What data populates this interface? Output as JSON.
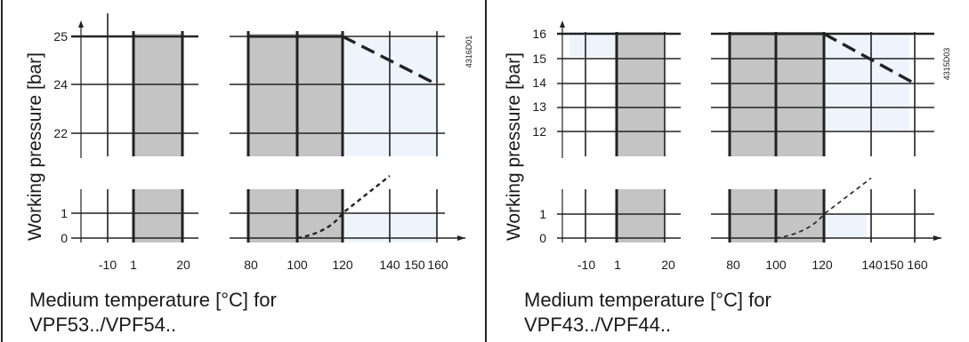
{
  "chart_data": [
    {
      "type": "line",
      "chart_id": "4316D01",
      "ylabel": "Working pressure [bar]",
      "xlabel_line1": "Medium temperature [°C] for",
      "xlabel_line2": "VPF53../VPF54..",
      "x_tick_labels": [
        "-10",
        "1",
        "20",
        "80",
        "100",
        "120",
        "140",
        "150",
        "160"
      ],
      "y_tick_labels_upper": [
        "25",
        "24",
        "22"
      ],
      "y_tick_labels_lower": [
        "1",
        "0"
      ],
      "shaded_ranges_x": [
        [
          1,
          20
        ],
        [
          80,
          120
        ]
      ],
      "series": [
        {
          "style": "solid",
          "x": [
            80,
            120
          ],
          "y": [
            25,
            25
          ]
        },
        {
          "style": "dashed",
          "x": [
            120,
            160
          ],
          "y": [
            25,
            24
          ]
        },
        {
          "style": "dotted",
          "x": [
            100,
            120,
            140
          ],
          "y": [
            0,
            1,
            2.5
          ]
        }
      ],
      "colors": {
        "shade": "#c4c4c4",
        "light": "#eef4fb",
        "line": "#222222"
      }
    },
    {
      "type": "line",
      "chart_id": "4315D03",
      "ylabel": "Working pressure [bar]",
      "xlabel_line1": "Medium temperature [°C] for",
      "xlabel_line2": "VPF43../VPF44..",
      "x_tick_labels": [
        "-10",
        "1",
        "20",
        "80",
        "100",
        "120",
        "140",
        "150",
        "160"
      ],
      "y_tick_labels_upper": [
        "16",
        "15",
        "14",
        "13",
        "12"
      ],
      "y_tick_labels_lower": [
        "1",
        "0"
      ],
      "shaded_ranges_x": [
        [
          1,
          20
        ],
        [
          80,
          120
        ]
      ],
      "series": [
        {
          "style": "solid",
          "x": [
            80,
            120
          ],
          "y": [
            16,
            16
          ]
        },
        {
          "style": "dashed",
          "x": [
            120,
            160
          ],
          "y": [
            16,
            14
          ]
        },
        {
          "style": "dotted",
          "x": [
            100,
            120,
            140
          ],
          "y": [
            0,
            1,
            2.5
          ]
        }
      ],
      "colors": {
        "shade": "#c4c4c4",
        "light": "#eef4fb",
        "line": "#222222"
      }
    }
  ]
}
